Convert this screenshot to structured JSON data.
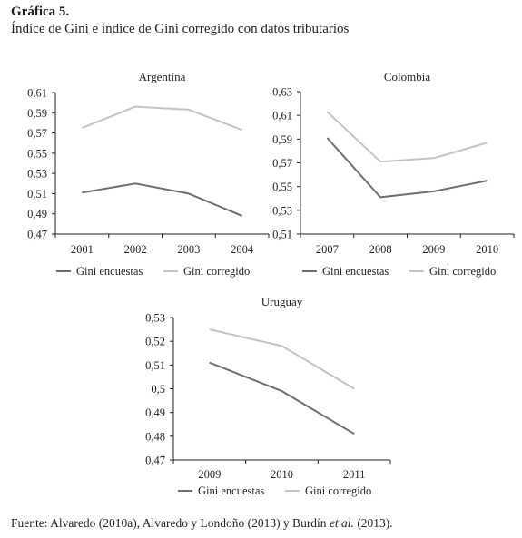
{
  "figure": {
    "heading": "Gráfica 5.",
    "subheading": "Índice de Gini e índice de Gini corregido con datos tributarios",
    "source_prefix": "Fuente: Alvaredo (2010a), Alvaredo y Londoño (2013) y Burdín ",
    "source_italic": "et al.",
    "source_suffix": " (2013)."
  },
  "colors": {
    "encuestas": "#6d6e71",
    "corregido": "#c2c3c5",
    "axis": "#231f20"
  },
  "chart_data": [
    {
      "type": "line",
      "title": "Argentina",
      "categories": [
        "2001",
        "2002",
        "2003",
        "2004"
      ],
      "ylim": [
        0.47,
        0.61
      ],
      "yticks": [
        "0,47",
        "0,49",
        "0,51",
        "0,53",
        "0,55",
        "0,57",
        "0,59",
        "0,61"
      ],
      "legend_position": "bottom",
      "series": [
        {
          "name": "Gini encuestas",
          "color": "encuestas",
          "values": [
            0.511,
            0.52,
            0.51,
            0.488
          ]
        },
        {
          "name": "Gini corregido",
          "color": "corregido",
          "values": [
            0.575,
            0.596,
            0.593,
            0.573
          ]
        }
      ]
    },
    {
      "type": "line",
      "title": "Colombia",
      "categories": [
        "2007",
        "2008",
        "2009",
        "2010"
      ],
      "ylim": [
        0.51,
        0.63
      ],
      "yticks": [
        "0,51",
        "0,53",
        "0,55",
        "0,57",
        "0,59",
        "0,61",
        "0,63"
      ],
      "legend_position": "bottom",
      "series": [
        {
          "name": "Gini encuestas",
          "color": "encuestas",
          "values": [
            0.591,
            0.541,
            0.546,
            0.555
          ]
        },
        {
          "name": "Gini corregido",
          "color": "corregido",
          "values": [
            0.613,
            0.571,
            0.574,
            0.587
          ]
        }
      ]
    },
    {
      "type": "line",
      "title": "Uruguay",
      "categories": [
        "2009",
        "2010",
        "2011"
      ],
      "ylim": [
        0.47,
        0.53
      ],
      "yticks": [
        "0,47",
        "0,48",
        "0,49",
        "0,5",
        "0,51",
        "0,52",
        "0,53"
      ],
      "legend_position": "bottom",
      "series": [
        {
          "name": "Gini encuestas",
          "color": "encuestas",
          "values": [
            0.511,
            0.499,
            0.481
          ]
        },
        {
          "name": "Gini corregido",
          "color": "corregido",
          "values": [
            0.525,
            0.518,
            0.5
          ]
        }
      ]
    }
  ]
}
